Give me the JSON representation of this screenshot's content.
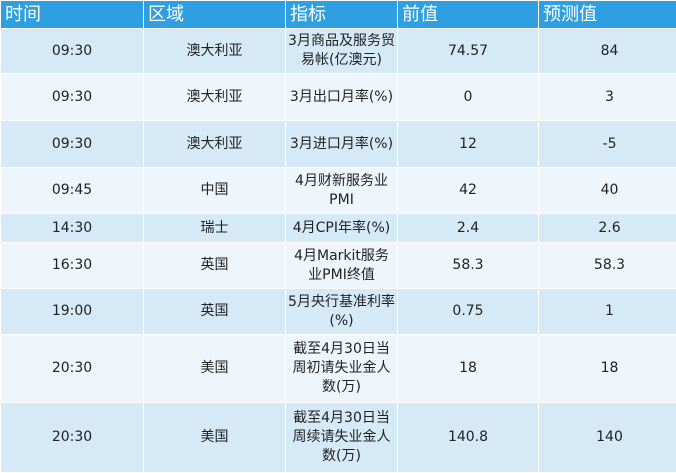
{
  "headers": [
    "时间",
    "区域",
    "指标",
    "前值",
    "预测值"
  ],
  "rows": [
    {
      "time": "09:30",
      "region": "澳大利亚",
      "indicator": "3月商品及服务贸易帐(亿澳元)",
      "prev": "74.57",
      "forecast": "84"
    },
    {
      "time": "09:30",
      "region": "澳大利亚",
      "indicator": "3月出口月率(%)",
      "prev": "0",
      "forecast": "3"
    },
    {
      "time": "09:30",
      "region": "澳大利亚",
      "indicator": "3月进口月率(%)",
      "prev": "12",
      "forecast": "-5"
    },
    {
      "time": "09:45",
      "region": "中国",
      "indicator": "4月财新服务业PMI",
      "prev": "42",
      "forecast": "40"
    },
    {
      "time": "14:30",
      "region": "瑞士",
      "indicator": "4月CPI年率(%)",
      "prev": "2.4",
      "forecast": "2.6"
    },
    {
      "time": "16:30",
      "region": "英国",
      "indicator": "4月Markit服务业PMI终值",
      "prev": "58.3",
      "forecast": "58.3"
    },
    {
      "time": "19:00",
      "region": "英国",
      "indicator": "5月央行基准利率(%)",
      "prev": "0.75",
      "forecast": "1"
    },
    {
      "time": "20:30",
      "region": "美国",
      "indicator": "截至4月30日当周初请失业金人数(万)",
      "prev": "18",
      "forecast": "18"
    },
    {
      "time": "20:30",
      "region": "美国",
      "indicator": "截至4月30日当周续请失业金人数(万)",
      "prev": "140.8",
      "forecast": "140"
    }
  ],
  "colors": {
    "header": "#2e9fe0",
    "row_dark": "#d6e9f6",
    "row_light": "#eef6fc"
  }
}
